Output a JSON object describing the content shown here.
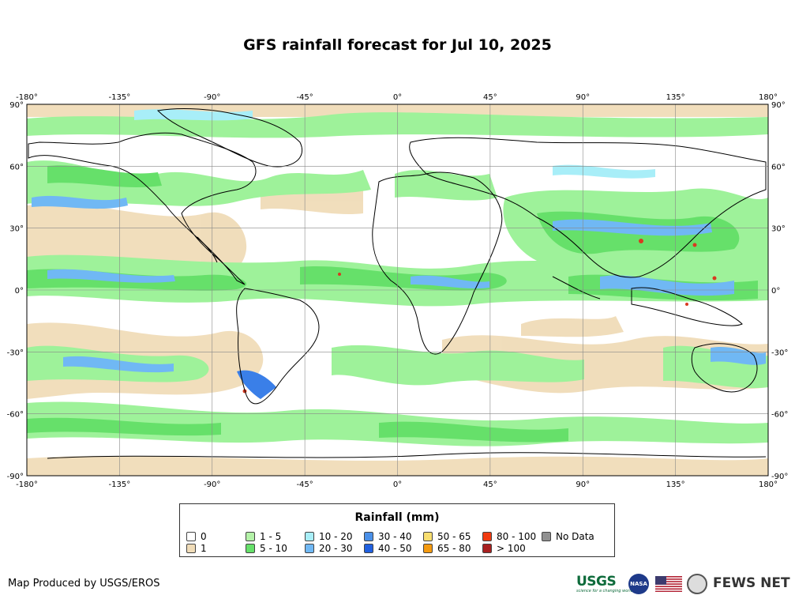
{
  "title": "GFS rainfall forecast for Jul 10, 2025",
  "map": {
    "lon_ticks": [
      "-180°",
      "-135°",
      "-90°",
      "-45°",
      "0°",
      "45°",
      "90°",
      "135°",
      "180°"
    ],
    "lat_ticks": [
      "90°",
      "60°",
      "30°",
      "0°",
      "-30°",
      "-60°",
      "-90°"
    ],
    "lon_range": [
      -180,
      180
    ],
    "lat_range": [
      -90,
      90
    ],
    "grid": true,
    "colors": {
      "ocean_no_rain": "#ffffff",
      "light": "#f0dcb8",
      "low": "#9ef29a",
      "moderate": "#66e06a",
      "high": "#a8eef8",
      "heavier": "#70b8f4",
      "heavy": "#3a7fe8",
      "extreme": "#d83a20"
    }
  },
  "legend": {
    "title": "Rainfall (mm)",
    "items": [
      {
        "label": "0",
        "color": "#ffffff"
      },
      {
        "label": "1",
        "color": "#f0dcb8"
      },
      {
        "label": "1 - 5",
        "color": "#b4f2a8"
      },
      {
        "label": "5 - 10",
        "color": "#66e06a"
      },
      {
        "label": "10 - 20",
        "color": "#a8eef8"
      },
      {
        "label": "20 - 30",
        "color": "#70b8f4"
      },
      {
        "label": "30 - 40",
        "color": "#4a90e8"
      },
      {
        "label": "40 - 50",
        "color": "#2060e0"
      },
      {
        "label": "50 - 65",
        "color": "#f8de70"
      },
      {
        "label": "65 - 80",
        "color": "#f49a10"
      },
      {
        "label": "80 - 100",
        "color": "#f03a10"
      },
      {
        "label": "> 100",
        "color": "#a82020"
      },
      {
        "label": "No Data",
        "color": "#909090"
      }
    ]
  },
  "footer": {
    "credit": "Map Produced by USGS/EROS",
    "logos": {
      "usgs": "USGS",
      "usgs_tagline": "science for a changing world",
      "nasa": "NASA",
      "fews": "FEWS NET"
    }
  }
}
